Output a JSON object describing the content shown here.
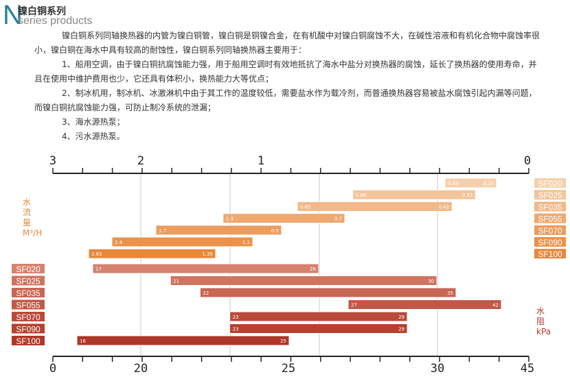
{
  "header": {
    "logo_letter": "N",
    "title": "镍白铜系列",
    "subtitle": "series products"
  },
  "paragraphs": [
    "镍白铜系列同轴换热器的内管为镍白铜管，镍白铜是铜镍合金，在有机酸中对镍白铜腐蚀不大，在碱性溶液和有机化合物中腐蚀率很小，镍白铜在海水中具有较高的耐蚀性，镍白铜系列同轴换热器主要用于：",
    "1、船用空调，由于镍白铜抗腐蚀能力强，用于船用空调时有效地抵抗了海水中盐分对换热器的腐蚀，延长了换热器的使用寿命，并且在使用中维护费用也少，它还具有体积小，换热能力大等优点；",
    "2、制冰机用，制冰机、冰激淋机中由于其工作的温度较低，需要盐水作为载冷剂，而普通换热器容易被盐水腐蚀引起内漏等问题，而镍白铜抗腐蚀能力强，可防止制冷系统的泄漏；",
    "3、海水源热泵；",
    "4、污水源热泵。"
  ],
  "chart_data": {
    "type": "range-bar",
    "top_axis": {
      "label": "水流量 M³/H",
      "ticks": [
        "3",
        "2",
        "1",
        "0"
      ],
      "color": "#e8883a"
    },
    "bottom_axis": {
      "label": "水阻 kPa",
      "ticks": [
        "0",
        "20",
        "25",
        "30",
        "45"
      ],
      "color": "#b0392a"
    },
    "flow": [
      {
        "model": "SF020",
        "min": 0.23,
        "max": 0.45,
        "color": "#f6d0ac"
      },
      {
        "model": "SF025",
        "min": 0.32,
        "max": 0.68,
        "color": "#f4c49a"
      },
      {
        "model": "SF035",
        "min": 0.42,
        "max": 0.85,
        "color": "#f2b888"
      },
      {
        "model": "SF055",
        "min": 0.7,
        "max": 1.3,
        "color": "#efa870"
      },
      {
        "model": "SF070",
        "min": 0.9,
        "max": 1.7,
        "color": "#ec9c5c"
      },
      {
        "model": "SF090",
        "min": 1.1,
        "max": 2.4,
        "color": "#ea924b"
      },
      {
        "model": "SF100",
        "min": 1.35,
        "max": 2.65,
        "color": "#e8883a"
      }
    ],
    "resistance": [
      {
        "model": "SF020",
        "min": 17,
        "max": 26,
        "color": "#d5826e"
      },
      {
        "model": "SF025",
        "min": 21,
        "max": 30,
        "color": "#cf7461"
      },
      {
        "model": "SF035",
        "min": 22,
        "max": 35,
        "color": "#c96654"
      },
      {
        "model": "SF055",
        "min": 27,
        "max": 42,
        "color": "#c25847"
      },
      {
        "model": "SF070",
        "min": 23,
        "max": 29,
        "color": "#bb4a3b"
      },
      {
        "model": "SF090",
        "min": 23,
        "max": 29,
        "color": "#b5412f"
      },
      {
        "model": "SF100",
        "min": 16,
        "max": 25,
        "color": "#ae3828"
      }
    ]
  }
}
